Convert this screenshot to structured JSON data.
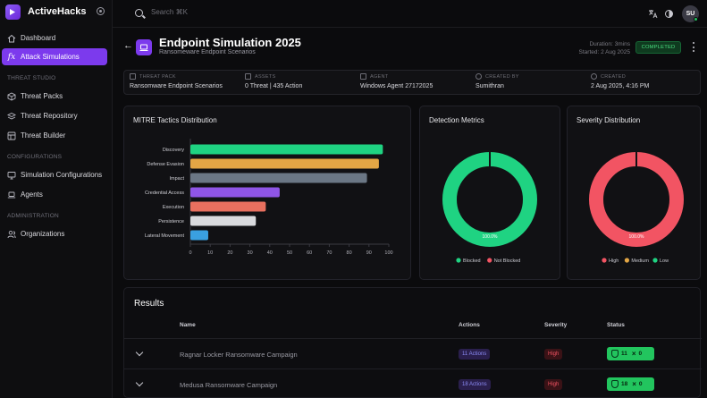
{
  "brand": {
    "name": "ActiveHacks"
  },
  "sidebar": {
    "items": [
      {
        "label": "Dashboard"
      },
      {
        "label": "Attack Simulations"
      }
    ],
    "sections": [
      {
        "title": "THREAT STUDIO",
        "items": [
          {
            "label": "Threat Packs"
          },
          {
            "label": "Threat Repository"
          },
          {
            "label": "Threat Builder"
          }
        ]
      },
      {
        "title": "CONFIGURATIONS",
        "items": [
          {
            "label": "Simulation Configurations"
          },
          {
            "label": "Agents"
          }
        ]
      },
      {
        "title": "ADMINISTRATION",
        "items": [
          {
            "label": "Organizations"
          }
        ]
      }
    ]
  },
  "search": {
    "placeholder": "Search ⌘K"
  },
  "user": {
    "initials": "SU"
  },
  "header": {
    "title": "Endpoint Simulation 2025",
    "subtitle": "Ransomeware Endpoint Scenarios",
    "duration": "Duration: 3mins",
    "started": "Started: 2 Aug 2025",
    "status": "COMPLETED"
  },
  "info": [
    {
      "label": "THREAT PACK",
      "value": "Ransomware Endpoint Scenarios"
    },
    {
      "label": "ASSETS",
      "value": "0 Threat | 435 Action"
    },
    {
      "label": "AGENT",
      "value": "Windows Agent 27172025"
    },
    {
      "label": "CREATED BY",
      "value": "Sumithran"
    },
    {
      "label": "CREATED",
      "value": "2 Aug 2025, 4:16 PM"
    }
  ],
  "mitre": {
    "title": "MITRE Tactics Distribution",
    "chart_data": {
      "type": "bar",
      "orientation": "horizontal",
      "categories": [
        "Discovery",
        "Defense Evasion",
        "Impact",
        "Credential Access",
        "Execution",
        "Persistence",
        "Lateral Movement"
      ],
      "values": [
        97,
        95,
        89,
        45,
        38,
        33,
        9
      ],
      "colors": [
        "#1fd382",
        "#e3a645",
        "#6b7785",
        "#8f55e6",
        "#e8705f",
        "#d9dade",
        "#3aa0e0"
      ],
      "xticks": [
        "0",
        "10",
        "20",
        "30",
        "40",
        "50",
        "60",
        "70",
        "80",
        "90",
        "100"
      ],
      "xlim": [
        0,
        100
      ]
    }
  },
  "detection": {
    "title": "Detection Metrics",
    "chart_data": {
      "type": "pie",
      "donut": true,
      "categories": [
        "Blocked",
        "Not Blocked"
      ],
      "values": [
        100,
        0
      ],
      "colors": [
        "#1fd382",
        "#f25463"
      ],
      "center_label": "100.0%"
    }
  },
  "severity": {
    "title": "Severity Distribution",
    "chart_data": {
      "type": "pie",
      "donut": true,
      "categories": [
        "High",
        "Medium",
        "Low"
      ],
      "values": [
        100,
        0,
        0
      ],
      "colors": [
        "#f25463",
        "#e3a645",
        "#1fd382"
      ],
      "center_label": "100.0%"
    }
  },
  "results": {
    "title": "Results",
    "columns": {
      "name": "Name",
      "actions": "Actions",
      "severity": "Severity",
      "status": "Status"
    },
    "rows": [
      {
        "name": "Ragnar Locker Ransomware Campaign",
        "actions": "11 Actions",
        "severity": "High",
        "blocked": "11",
        "not_blocked": "0"
      },
      {
        "name": "Medusa Ransomware Campaign",
        "actions": "18 Actions",
        "severity": "High",
        "blocked": "18",
        "not_blocked": "0"
      }
    ]
  }
}
